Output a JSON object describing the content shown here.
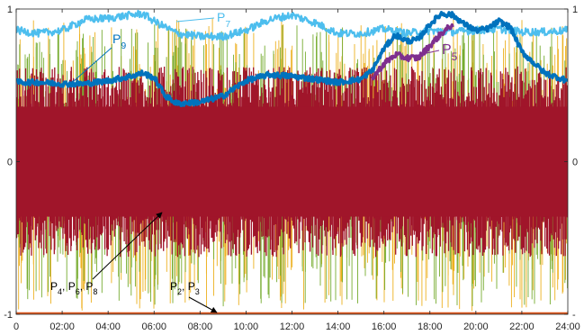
{
  "chart_data": {
    "type": "line",
    "title": "",
    "xlabel": "",
    "ylabel": "",
    "xlim": [
      "00:00",
      "24:00"
    ],
    "ylim": [
      -1,
      1
    ],
    "grid": false,
    "x_ticks": [
      "0",
      "02:00",
      "04:00",
      "06:00",
      "08:00",
      "10:00",
      "12:00",
      "14:00",
      "16:00",
      "18:00",
      "20:00",
      "22:00",
      "24:00"
    ],
    "y_ticks_left": [
      "1",
      "0",
      "-1"
    ],
    "y_ticks_right": [
      "1",
      "0",
      "-"
    ],
    "colors": {
      "band_red": "#a0152a",
      "band_green": "#77ac30",
      "band_yellow": "#edb120",
      "p5": "#7e2f8e",
      "p7": "#4dbeee",
      "p9": "#0072bd",
      "p2p3": "#d95319",
      "arrow": "#000000"
    },
    "series": [
      {
        "name": "P9",
        "x": [
          "00:00",
          "01:00",
          "02:00",
          "03:00",
          "04:00",
          "05:00",
          "05:30",
          "06:00",
          "06:30",
          "07:00",
          "08:00",
          "09:00",
          "10:00",
          "11:00",
          "12:00",
          "13:00",
          "14:00",
          "15:00",
          "15:30",
          "16:00",
          "16:30",
          "17:00",
          "17:30",
          "18:00",
          "18:30",
          "19:00",
          "19:30",
          "20:00",
          "20:30",
          "21:00",
          "21:30",
          "22:00",
          "23:00",
          "24:00"
        ],
        "values": [
          0.52,
          0.52,
          0.51,
          0.51,
          0.53,
          0.56,
          0.58,
          0.55,
          0.43,
          0.38,
          0.39,
          0.43,
          0.53,
          0.57,
          0.56,
          0.54,
          0.52,
          0.54,
          0.6,
          0.74,
          0.83,
          0.79,
          0.8,
          0.9,
          0.97,
          0.96,
          0.9,
          0.86,
          0.87,
          0.92,
          0.88,
          0.72,
          0.58,
          0.53
        ]
      },
      {
        "name": "P5",
        "x": [
          "15:30",
          "16:00",
          "16:30",
          "17:00",
          "17:30",
          "18:00",
          "18:30",
          "19:00"
        ],
        "values": [
          0.55,
          0.64,
          0.7,
          0.68,
          0.68,
          0.76,
          0.84,
          0.9
        ]
      },
      {
        "name": "P7",
        "x": [
          "00:00",
          "01:00",
          "02:00",
          "03:00",
          "04:00",
          "05:00",
          "05:30",
          "06:00",
          "07:00",
          "08:00",
          "09:00",
          "10:00",
          "11:00",
          "12:00",
          "13:00",
          "14:00",
          "15:00",
          "16:00",
          "17:00",
          "18:00",
          "19:00",
          "20:00",
          "21:00",
          "22:00",
          "23:00",
          "24:00"
        ],
        "values": [
          0.86,
          0.84,
          0.86,
          0.93,
          0.94,
          0.96,
          0.97,
          0.92,
          0.84,
          0.82,
          0.82,
          0.86,
          0.93,
          0.96,
          0.91,
          0.84,
          0.84,
          0.87,
          0.84,
          0.86,
          0.85,
          0.86,
          0.87,
          0.85,
          0.85,
          0.86
        ]
      },
      {
        "name": "P2, P3",
        "x": [
          "00:00",
          "24:00"
        ],
        "values": [
          -1,
          -1
        ]
      }
    ],
    "bands": [
      {
        "name": "P4, P6, P8",
        "center": 0,
        "amplitude": 0.5
      }
    ],
    "annotations": [
      {
        "text_main": "P",
        "text_sub": "9",
        "color": "#0072bd"
      },
      {
        "text_main": "P",
        "text_sub": "7",
        "color": "#4dbeee"
      },
      {
        "text_main": "P",
        "text_sub": "5",
        "color": "#7e2f8e"
      },
      {
        "text_main": "P",
        "text_sub": "4",
        "sep1": ", P",
        "sub2": "6",
        "sep2": ", P",
        "sub3": "8",
        "color": "#000000"
      },
      {
        "text_main": "P",
        "text_sub": "2",
        "sep1": ", P",
        "sub2": "3",
        "color": "#000000"
      }
    ]
  }
}
